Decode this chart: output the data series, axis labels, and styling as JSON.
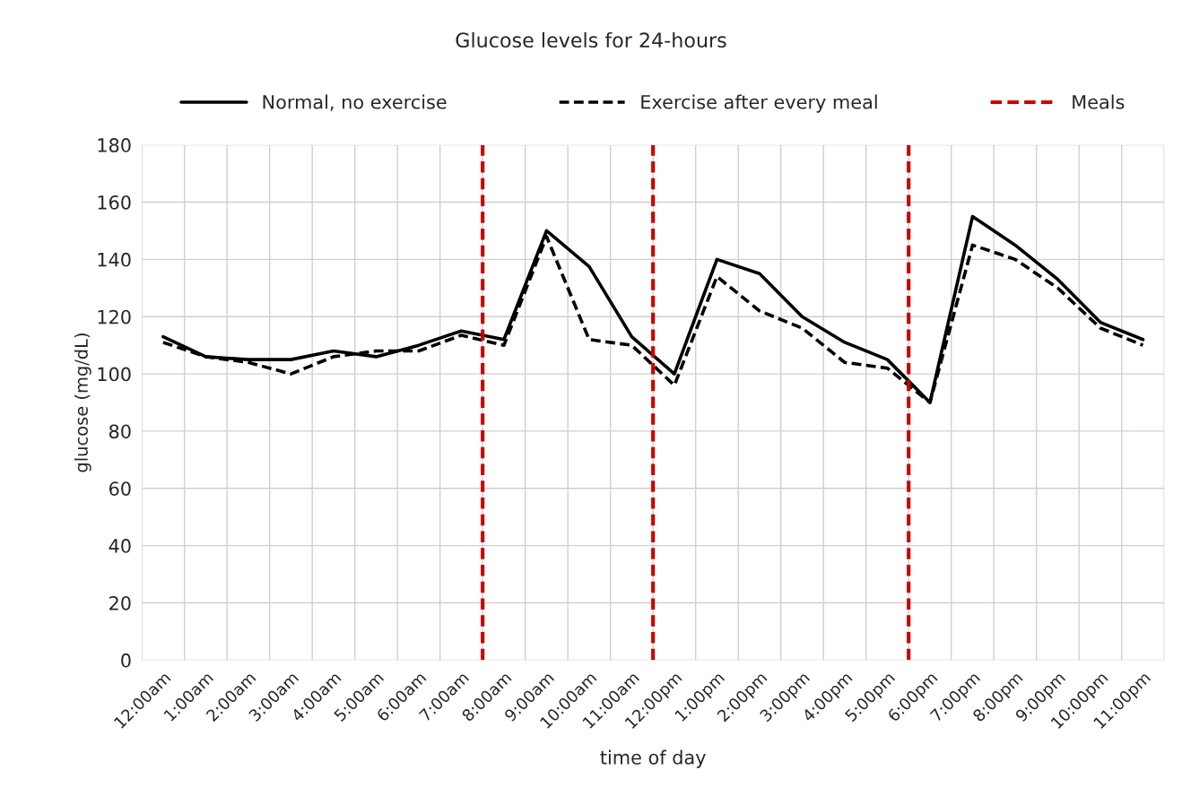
{
  "chart_data": {
    "type": "line",
    "title": "Glucose levels for 24-hours",
    "xlabel": "time of day",
    "ylabel": "glucose (mg/dL)",
    "x": [
      0,
      1,
      2,
      3,
      4,
      5,
      6,
      7,
      8,
      9,
      10,
      11,
      12,
      13,
      14,
      15,
      16,
      17,
      18,
      19,
      20,
      21,
      22,
      23
    ],
    "xlim": [
      -0.5,
      23.5
    ],
    "xticks": [
      {
        "value": 0,
        "label": "12:00am"
      },
      {
        "value": 1,
        "label": "1:00am"
      },
      {
        "value": 2,
        "label": "2:00am"
      },
      {
        "value": 3,
        "label": "3:00am"
      },
      {
        "value": 4,
        "label": "4:00am"
      },
      {
        "value": 5,
        "label": "5:00am"
      },
      {
        "value": 6,
        "label": "6:00am"
      },
      {
        "value": 7,
        "label": "7:00am"
      },
      {
        "value": 8,
        "label": "8:00am"
      },
      {
        "value": 9,
        "label": "9:00am"
      },
      {
        "value": 10,
        "label": "10:00am"
      },
      {
        "value": 11,
        "label": "11:00am"
      },
      {
        "value": 12,
        "label": "12:00pm"
      },
      {
        "value": 13,
        "label": "1:00pm"
      },
      {
        "value": 14,
        "label": "2:00pm"
      },
      {
        "value": 15,
        "label": "3:00pm"
      },
      {
        "value": 16,
        "label": "4:00pm"
      },
      {
        "value": 17,
        "label": "5:00pm"
      },
      {
        "value": 18,
        "label": "6:00pm"
      },
      {
        "value": 19,
        "label": "7:00pm"
      },
      {
        "value": 20,
        "label": "8:00pm"
      },
      {
        "value": 21,
        "label": "9:00pm"
      },
      {
        "value": 22,
        "label": "10:00pm"
      },
      {
        "value": 23,
        "label": "11:00pm"
      }
    ],
    "ylim": [
      0,
      180
    ],
    "yticks": [
      0,
      20,
      40,
      60,
      80,
      100,
      120,
      140,
      160,
      180
    ],
    "series": [
      {
        "name": "Normal, no exercise",
        "color": "#000000",
        "line_style": "solid",
        "values": [
          113,
          106,
          105,
          105,
          108,
          106,
          110,
          115,
          112,
          150,
          137.5,
          113,
          100,
          140,
          135,
          120,
          111,
          105,
          90,
          155,
          145,
          133,
          118,
          112
        ]
      },
      {
        "name": "Exercise after every meal",
        "color": "#000000",
        "line_style": "dashed",
        "values": [
          111,
          106,
          104,
          100,
          106,
          108,
          108,
          113.5,
          110,
          148,
          112,
          110,
          96,
          134,
          122,
          116,
          104,
          102,
          90,
          145,
          140,
          130,
          116,
          110
        ]
      }
    ],
    "ref_lines": [
      {
        "axis": "x",
        "value": 7.5,
        "label": "Meals",
        "color": "#cc0000",
        "line_style": "dashed"
      },
      {
        "axis": "x",
        "value": 11.5,
        "color": "#cc0000",
        "line_style": "dashed"
      },
      {
        "axis": "x",
        "value": 17.5,
        "color": "#cc0000",
        "line_style": "dashed"
      }
    ],
    "grid": true,
    "legend": "top",
    "marker": "none"
  }
}
